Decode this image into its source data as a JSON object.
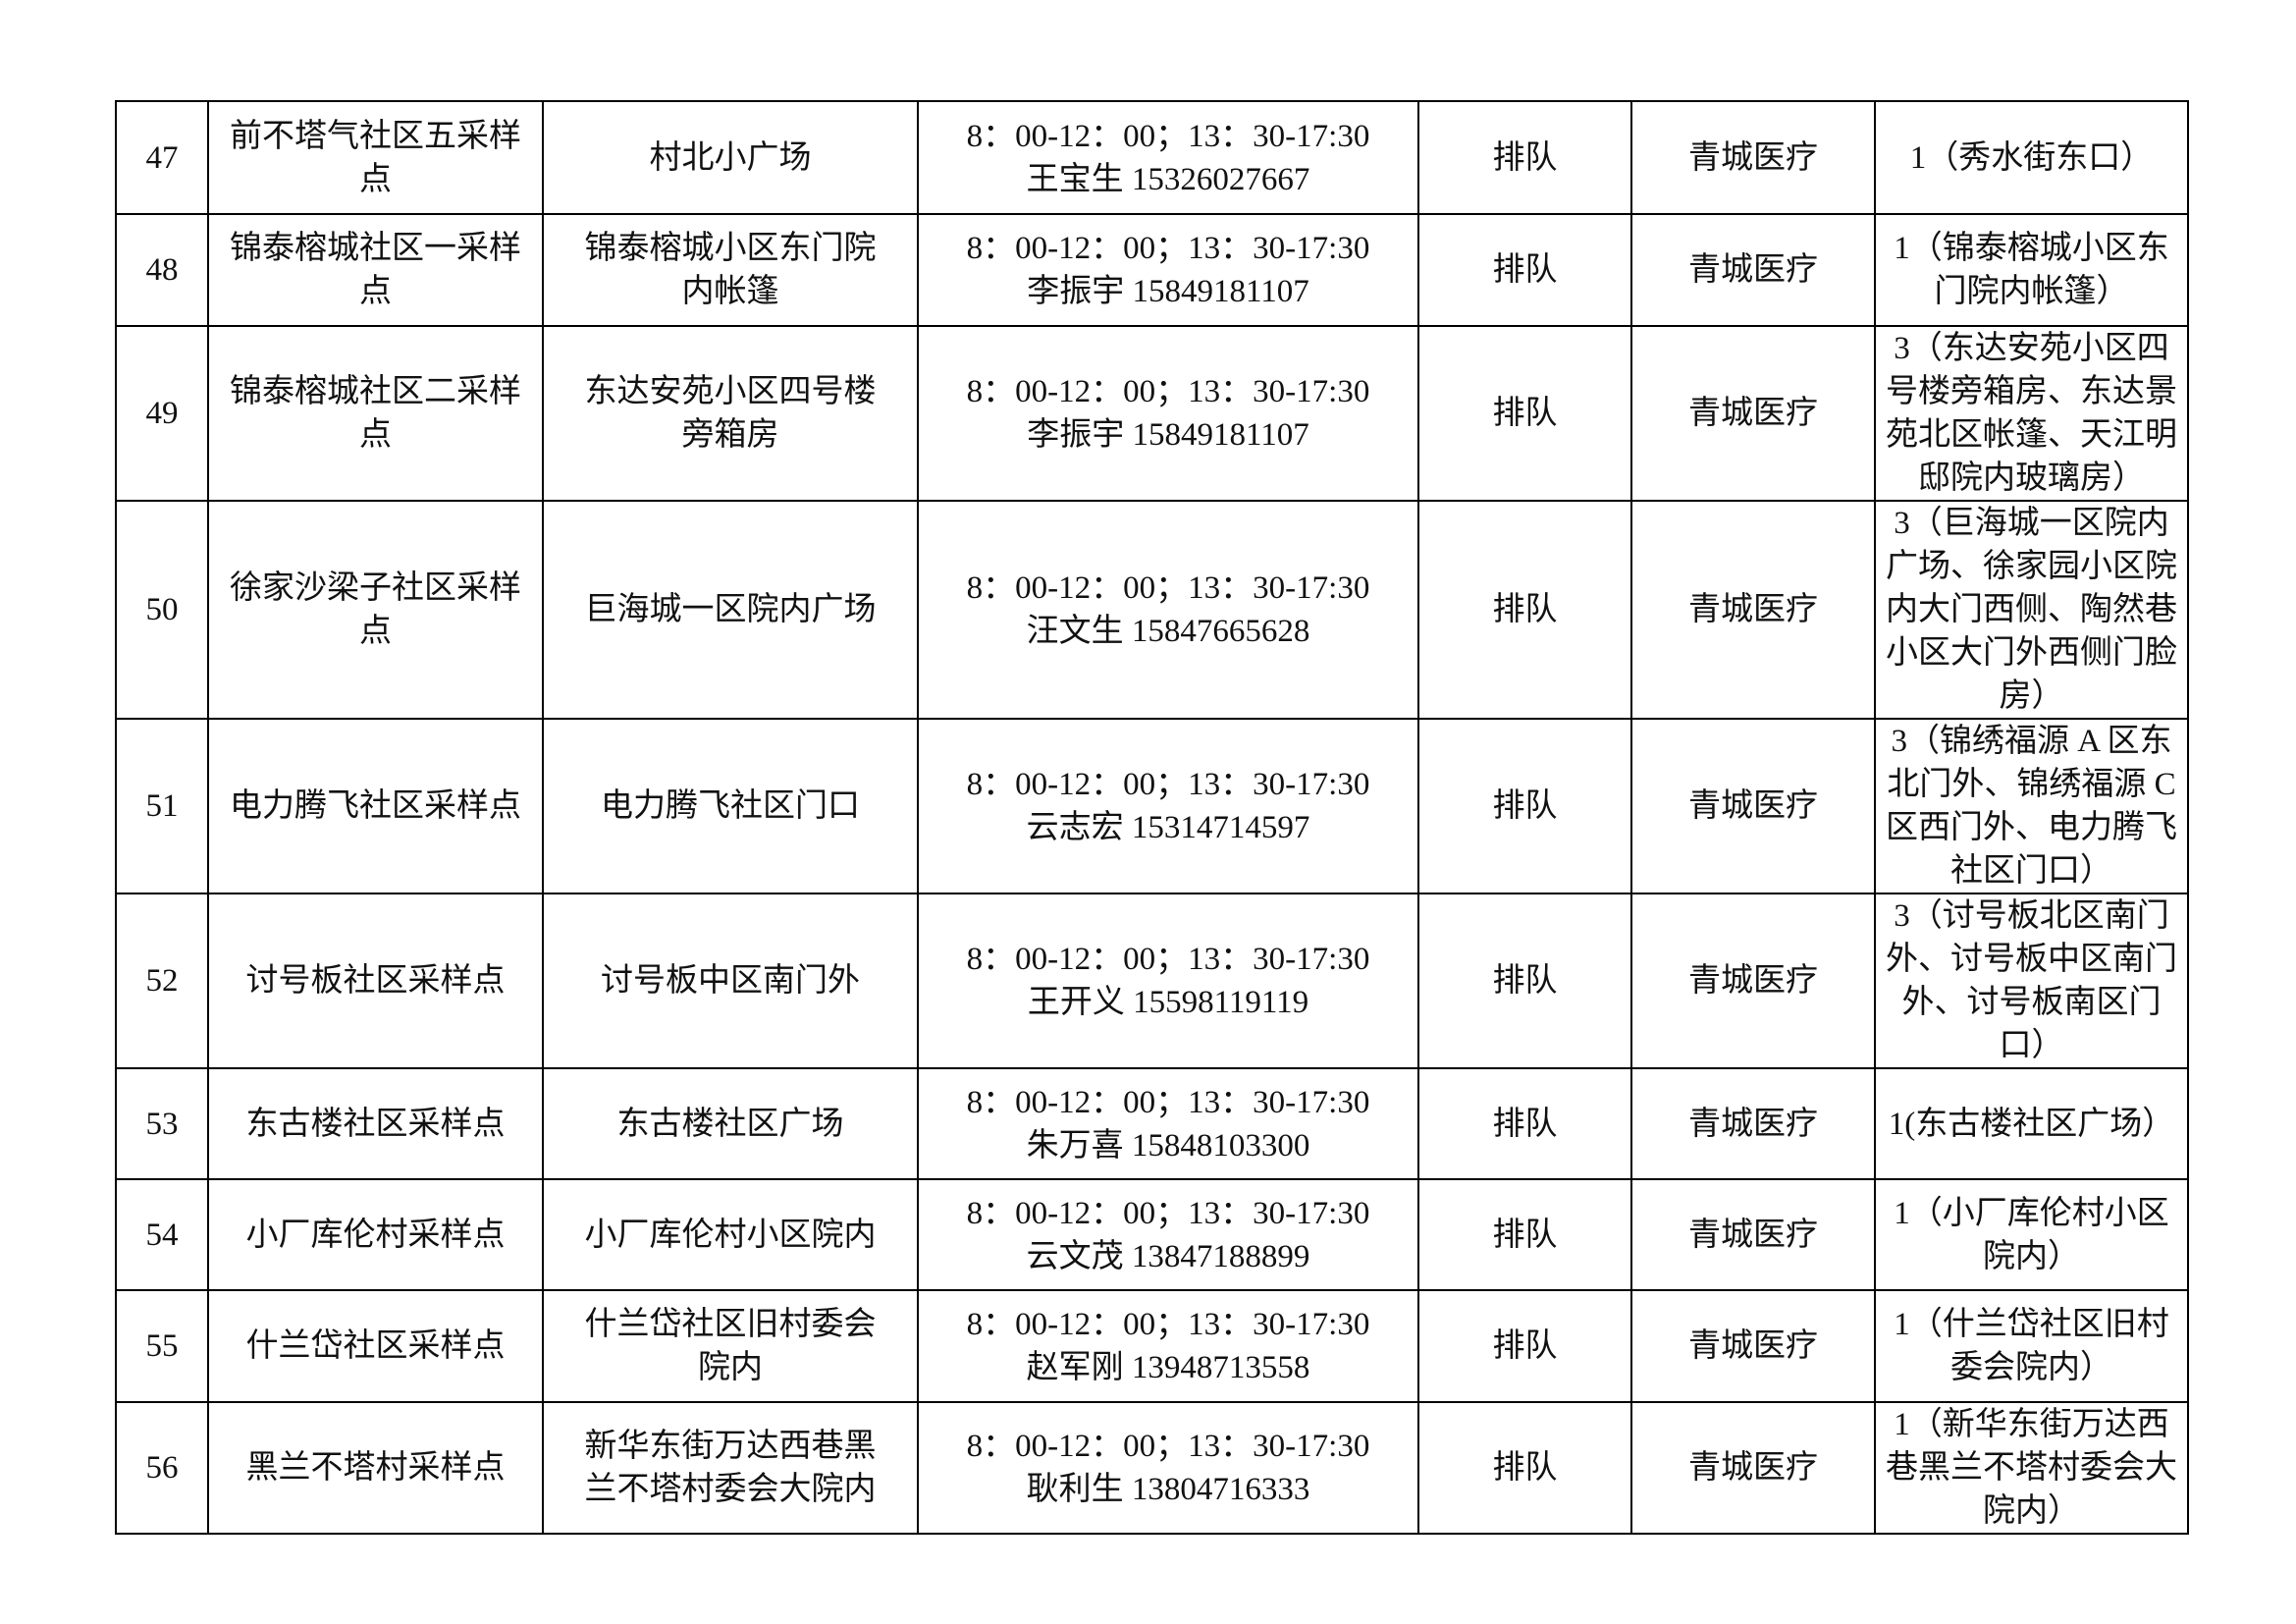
{
  "table": {
    "rows": [
      [
        "47",
        "前不塔气社区五采样点",
        "村北小广场",
        "8：00-12：00；13：30-17:30",
        "王宝生 15326027667",
        "排队",
        "青城医疗",
        "1（秀水街东口）"
      ],
      [
        "48",
        "锦泰榕城社区一采样点",
        "锦泰榕城小区东门院内帐篷",
        "8：00-12：00；13：30-17:30",
        "李振宇 15849181107",
        "排队",
        "青城医疗",
        "1（锦泰榕城小区东门院内帐篷）"
      ],
      [
        "49",
        "锦泰榕城社区二采样点",
        "东达安苑小区四号楼旁箱房",
        "8：00-12：00；13：30-17:30",
        "李振宇 15849181107",
        "排队",
        "青城医疗",
        "3（东达安苑小区四号楼旁箱房、东达景苑北区帐篷、天江明邸院内玻璃房）"
      ],
      [
        "50",
        "徐家沙梁子社区采样点",
        "巨海城一区院内广场",
        "8：00-12：00；13：30-17:30",
        "汪文生 15847665628",
        "排队",
        "青城医疗",
        "3（巨海城一区院内广场、徐家园小区院内大门西侧、陶然巷小区大门外西侧门脸房）"
      ],
      [
        "51",
        "电力腾飞社区采样点",
        "电力腾飞社区门口",
        "8：00-12：00；13：30-17:30",
        "云志宏 15314714597",
        "排队",
        "青城医疗",
        "3（锦绣福源 A 区东北门外、锦绣福源 C 区西门外、电力腾飞社区门口）"
      ],
      [
        "52",
        "讨号板社区采样点",
        "讨号板中区南门外",
        "8：00-12：00；13：30-17:30",
        "王开义 15598119119",
        "排队",
        "青城医疗",
        "3（讨号板北区南门外、讨号板中区南门外、讨号板南区门口）"
      ],
      [
        "53",
        "东古楼社区采样点",
        "东古楼社区广场",
        "8：00-12：00；13：30-17:30",
        "朱万喜 15848103300",
        "排队",
        "青城医疗",
        "1(东古楼社区广场）"
      ],
      [
        "54",
        "小厂库伦村采样点",
        "小厂库伦村小区院内",
        "8：00-12：00；13：30-17:30",
        "云文茂 13847188899",
        "排队",
        "青城医疗",
        "1（小厂库伦村小区院内）"
      ],
      [
        "55",
        "什兰岱社区采样点",
        "什兰岱社区旧村委会院内",
        "8：00-12：00；13：30-17:30",
        "赵军刚 13948713558",
        "排队",
        "青城医疗",
        "1（什兰岱社区旧村委会院内）"
      ],
      [
        "56",
        "黑兰不塔村采样点",
        "新华东街万达西巷黑兰不塔村委会大院内",
        "8：00-12：00；13：30-17:30",
        "耿利生 13804716333",
        "排队",
        "青城医疗",
        "1（新华东街万达西巷黑兰不塔村委会大院内）"
      ]
    ]
  }
}
